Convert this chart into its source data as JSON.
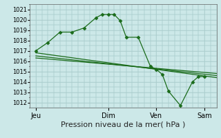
{
  "xlabel": "Pression niveau de la mer( hPa )",
  "bg_color": "#cce8e8",
  "grid_color": "#aacccc",
  "line_color": "#1a6b1a",
  "marker_color": "#1a6b1a",
  "ylim": [
    1011.5,
    1021.5
  ],
  "yticks": [
    1012,
    1013,
    1014,
    1015,
    1016,
    1017,
    1018,
    1019,
    1020,
    1021
  ],
  "day_labels": [
    "Jeu",
    "Dim",
    "Ven",
    "Sam"
  ],
  "day_positions": [
    0,
    48,
    80,
    112
  ],
  "xlim": [
    -4,
    120
  ],
  "series1_x": [
    0,
    8,
    16,
    24,
    32,
    40,
    44,
    48,
    52,
    56,
    60,
    68,
    76,
    80,
    84,
    88,
    96,
    104,
    108,
    112
  ],
  "series1_y": [
    1017.0,
    1017.8,
    1018.8,
    1018.8,
    1019.2,
    1020.2,
    1020.5,
    1020.5,
    1020.5,
    1019.9,
    1018.3,
    1018.3,
    1015.5,
    1015.2,
    1014.7,
    1013.1,
    1011.7,
    1014.0,
    1014.5,
    1014.5
  ],
  "series2_x": [
    0,
    120
  ],
  "series2_y": [
    1016.8,
    1014.4
  ],
  "series3_x": [
    0,
    120
  ],
  "series3_y": [
    1016.5,
    1014.6
  ],
  "series4_x": [
    0,
    120
  ],
  "series4_y": [
    1016.3,
    1014.8
  ]
}
